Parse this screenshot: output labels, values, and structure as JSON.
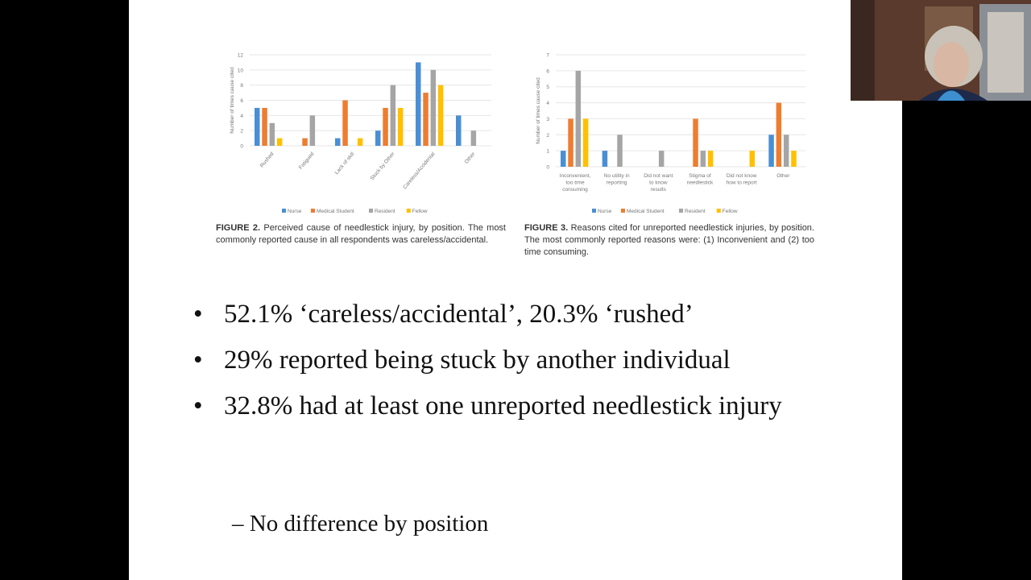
{
  "slide": {
    "figure2_caption": {
      "label": "FIGURE 2.",
      "text": "Perceived cause of needlestick injury, by position. The most commonly reported cause in all respondents was careless/accidental."
    },
    "figure3_caption": {
      "label": "FIGURE 3.",
      "text": "Reasons cited for unreported needlestick injuries, by position. The most commonly reported reasons were: (1) Inconvenient and (2) too time consuming."
    },
    "bullets": [
      "52.1% ‘careless/accidental’, 20.3% ‘rushed’",
      "29% reported being stuck by another individual",
      "32.8% had at least one unreported needlestick injury"
    ],
    "bullet_glyph": "•",
    "sub_bullet": "– No difference by position"
  },
  "colors": {
    "nurse": "#4a8fd4",
    "medical_student": "#ed7d31",
    "resident": "#a5a5a5",
    "fellow": "#ffc000"
  },
  "chart_data": [
    {
      "type": "bar",
      "title": "Perceived cause of needlestick injury, by position",
      "ylabel": "Number of times cause cited",
      "xlabel": "",
      "ylim": [
        0,
        12
      ],
      "yticks": [
        0,
        2,
        4,
        6,
        8,
        10,
        12
      ],
      "grid": true,
      "legend": "bottom",
      "categories": [
        "Rushed",
        "Fatigued",
        "Lack of skill",
        "Stuck by Other",
        "Careless/Accidental",
        "Other"
      ],
      "series": [
        {
          "name": "Nurse",
          "values": [
            5,
            0,
            1,
            2,
            11,
            4
          ]
        },
        {
          "name": "Medical Student",
          "values": [
            5,
            1,
            6,
            5,
            7,
            0
          ]
        },
        {
          "name": "Resident",
          "values": [
            3,
            4,
            0,
            8,
            10,
            2
          ]
        },
        {
          "name": "Fellow",
          "values": [
            1,
            0,
            1,
            5,
            8,
            0
          ]
        }
      ]
    },
    {
      "type": "bar",
      "title": "Reasons cited for unreported needlestick injuries, by position",
      "ylabel": "Number of times cause cited",
      "xlabel": "",
      "ylim": [
        0,
        7
      ],
      "yticks": [
        0,
        1,
        2,
        3,
        4,
        5,
        6,
        7
      ],
      "grid": true,
      "legend": "bottom",
      "categories": [
        "Inconvenient, too time consuming",
        "No utility in reporting",
        "Did not want to know results",
        "Stigma of needlestick",
        "Did not know how to report",
        "Other"
      ],
      "series": [
        {
          "name": "Nurse",
          "values": [
            1,
            1,
            0,
            0,
            0,
            2
          ]
        },
        {
          "name": "Medical Student",
          "values": [
            3,
            0,
            0,
            3,
            0,
            4
          ]
        },
        {
          "name": "Resident",
          "values": [
            6,
            2,
            1,
            1,
            0,
            2
          ]
        },
        {
          "name": "Fellow",
          "values": [
            3,
            0,
            0,
            1,
            1,
            1
          ]
        }
      ]
    }
  ]
}
